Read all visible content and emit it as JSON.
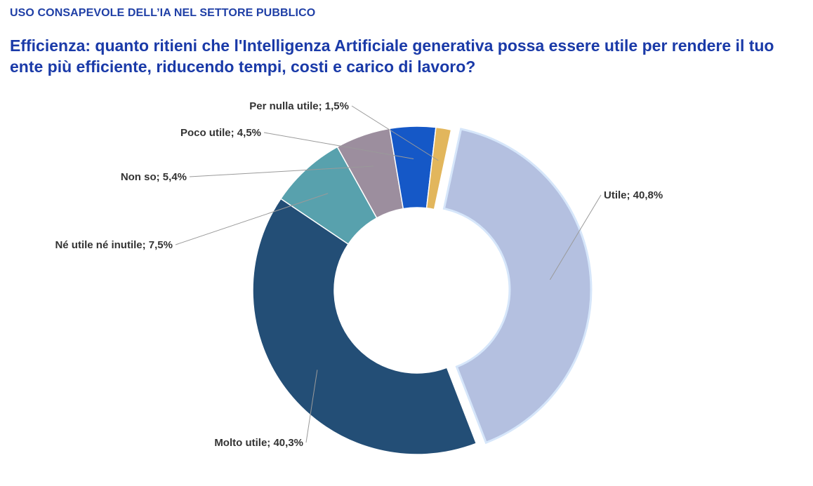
{
  "header": {
    "kicker": "USO CONSAPEVOLE DELL’IA NEL SETTORE PUBBLICO",
    "title": "Efficienza: quanto ritieni che l'Intelligenza Artificiale generativa possa essere utile per rendere il tuo ente più efficiente, riducendo tempi, costi e carico di lavoro?"
  },
  "chart_data": {
    "type": "pie",
    "variant": "donut",
    "categories": [
      "Utile",
      "Molto utile",
      "Né utile né inutile",
      "Non so",
      "Poco utile",
      "Per nulla utile"
    ],
    "values": [
      40.8,
      40.3,
      7.5,
      5.4,
      4.5,
      1.5
    ],
    "labels": [
      "Utile; 40,8%",
      "Molto utile; 40,3%",
      "Né utile né inutile; 7,5%",
      "Non so; 5,4%",
      "Poco utile; 4,5%",
      "Per nulla utile; 1,5%"
    ],
    "colors": [
      "#b4c0e0",
      "#234e76",
      "#58a1ad",
      "#9c8e9e",
      "#1558c7",
      "#e2b65c"
    ],
    "exploded": "Utile"
  }
}
